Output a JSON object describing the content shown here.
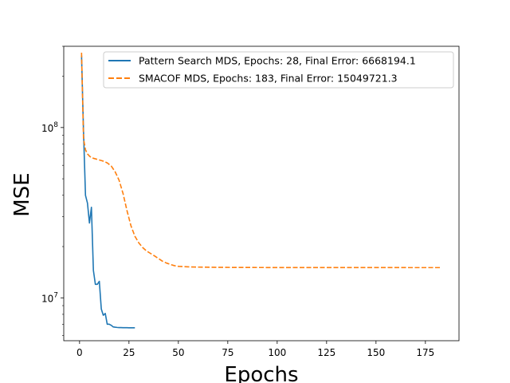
{
  "chart_data": {
    "type": "line",
    "title": "",
    "xlabel": "Epochs",
    "ylabel": "MSE",
    "yscale": "log",
    "xlim": [
      -8,
      192
    ],
    "ylim": [
      5600000,
      300000000
    ],
    "xticks": [
      0,
      25,
      50,
      75,
      100,
      125,
      150,
      175
    ],
    "xtick_labels": [
      "0",
      "25",
      "50",
      "75",
      "100",
      "125",
      "150",
      "175"
    ],
    "yticks": [
      10000000,
      100000000
    ],
    "ytick_labels": [
      {
        "base": "10",
        "exp": "7"
      },
      {
        "base": "10",
        "exp": "8"
      }
    ],
    "legend_position": "top-right",
    "series": [
      {
        "name": "Pattern Search MDS, Epochs: 28, Final Error: 6668194.1",
        "color": "#1f77b4",
        "style": "solid",
        "x": [
          1,
          2,
          3,
          4,
          5,
          6,
          7,
          8,
          9,
          10,
          11,
          12,
          13,
          14,
          15,
          16,
          17,
          18,
          19,
          20,
          21,
          22,
          23,
          24,
          25,
          26,
          27,
          28
        ],
        "y": [
          265000000,
          95000000,
          40000000,
          36000000,
          27500000,
          34000000,
          14500000,
          12000000,
          12000000,
          12500000,
          8600000,
          7900000,
          8100000,
          7000000,
          7000000,
          6900000,
          6750000,
          6720000,
          6700000,
          6690000,
          6685000,
          6680000,
          6678000,
          6675000,
          6672000,
          6670000,
          6669000,
          6668194.1
        ]
      },
      {
        "name": "SMACOF MDS, Epochs: 183, Final Error: 15049721.3",
        "color": "#ff7f0e",
        "style": "dashed",
        "x": [
          1,
          2,
          3,
          4,
          5,
          6,
          8,
          10,
          12,
          14,
          16,
          18,
          20,
          22,
          24,
          26,
          28,
          30,
          32,
          34,
          36,
          38,
          40,
          42,
          44,
          46,
          48,
          50,
          55,
          60,
          70,
          80,
          90,
          100,
          120,
          140,
          160,
          183
        ],
        "y": [
          275000000,
          86000000,
          74000000,
          70000000,
          68000000,
          66500000,
          65500000,
          64500000,
          63500000,
          62000000,
          59500000,
          55000000,
          49000000,
          41000000,
          32500000,
          26500000,
          23000000,
          21000000,
          19700000,
          18800000,
          18200000,
          17600000,
          17000000,
          16400000,
          16000000,
          15700000,
          15450000,
          15300000,
          15200000,
          15150000,
          15100000,
          15080000,
          15070000,
          15060000,
          15055000,
          15052000,
          15050500,
          15049721.3
        ]
      }
    ]
  }
}
